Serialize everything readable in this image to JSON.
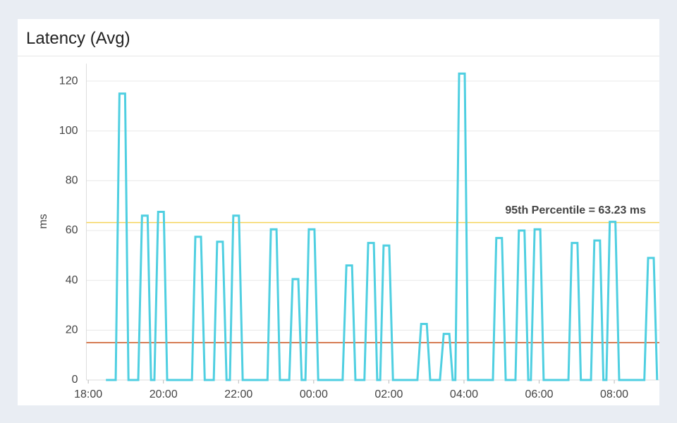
{
  "chart_data": {
    "type": "line",
    "title": "Latency (Avg)",
    "y_label": "ms",
    "x": [
      0.47,
      0.73,
      0.83,
      0.98,
      1.07,
      1.33,
      1.43,
      1.58,
      1.67,
      1.76,
      1.86,
      2.01,
      2.1,
      2.76,
      2.85,
      3.0,
      3.1,
      3.34,
      3.43,
      3.58,
      3.68,
      3.77,
      3.86,
      4.01,
      4.11,
      4.77,
      4.86,
      5.01,
      5.1,
      5.35,
      5.44,
      5.59,
      5.68,
      5.78,
      5.87,
      6.02,
      6.12,
      6.77,
      6.87,
      7.02,
      7.11,
      7.35,
      7.45,
      7.6,
      7.69,
      7.77,
      7.86,
      8.01,
      8.11,
      8.76,
      8.86,
      9.01,
      9.1,
      9.36,
      9.46,
      9.61,
      9.7,
      9.77,
      9.87,
      10.02,
      10.11,
      10.77,
      10.86,
      11.01,
      11.11,
      11.37,
      11.46,
      11.61,
      11.71,
      11.78,
      11.88,
      12.03,
      12.12,
      12.78,
      12.87,
      13.02,
      13.11,
      13.38,
      13.47,
      13.62,
      13.71,
      13.79,
      13.88,
      14.03,
      14.13,
      14.8,
      14.9,
      15.05,
      15.14
    ],
    "series": [
      {
        "name": "Latency",
        "color": "#4fcfe1",
        "values": [
          0,
          0,
          115,
          115,
          0,
          0,
          66,
          66,
          0,
          0,
          67.5,
          67.5,
          0,
          0,
          57.5,
          57.5,
          0,
          0,
          55.5,
          55.5,
          0,
          0,
          66,
          66,
          0,
          0,
          60.5,
          60.5,
          0,
          0,
          40.5,
          40.5,
          0,
          0,
          60.5,
          60.5,
          0,
          0,
          46,
          46,
          0,
          0,
          55,
          55,
          0,
          0,
          54,
          54,
          0,
          0,
          22.5,
          22.5,
          0,
          0,
          18.5,
          18.5,
          0,
          0,
          123,
          123,
          0,
          0,
          57,
          57,
          0,
          0,
          60,
          60,
          0,
          0,
          60.5,
          60.5,
          0,
          0,
          55,
          55,
          0,
          0,
          56,
          56,
          0,
          0,
          63.5,
          63.5,
          0,
          0,
          49,
          49,
          0
        ]
      }
    ],
    "reference_lines": [
      {
        "value": 63.23,
        "color": "#f5d45a",
        "label": "95th Percentile = 63.23 ms"
      },
      {
        "value": 15,
        "color": "#c9501c"
      }
    ],
    "xlim": [
      -0.05,
      15.2
    ],
    "xticks": [
      {
        "value": 0,
        "label": "18:00"
      },
      {
        "value": 2,
        "label": "20:00"
      },
      {
        "value": 4,
        "label": "22:00"
      },
      {
        "value": 6,
        "label": "00:00"
      },
      {
        "value": 8,
        "label": "02:00"
      },
      {
        "value": 10,
        "label": "04:00"
      },
      {
        "value": 12,
        "label": "06:00"
      },
      {
        "value": 14,
        "label": "08:00"
      }
    ],
    "ylim": [
      0,
      127
    ],
    "yticks": [
      0,
      20,
      40,
      60,
      80,
      100,
      120
    ],
    "grid": true
  }
}
